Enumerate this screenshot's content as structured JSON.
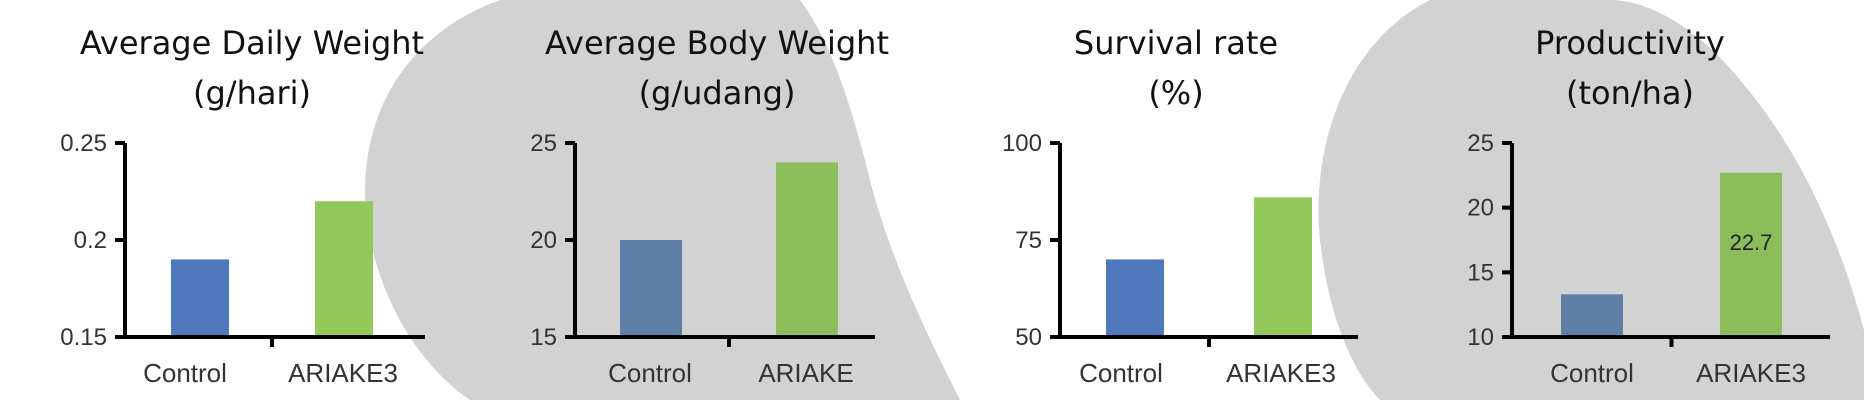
{
  "chart_data": [
    {
      "type": "bar",
      "title": "Average Daily Weight",
      "subtitle": "(g/hari)",
      "categories": [
        "Control",
        "ARIAKE3"
      ],
      "values": [
        0.19,
        0.22
      ],
      "colors": [
        "#4f78bd",
        "#92c95a"
      ],
      "ylim": [
        0.15,
        0.25
      ],
      "yticks": [
        "0.15",
        "0.2",
        "0.25"
      ],
      "ytick_values": [
        0.15,
        0.2,
        0.25
      ],
      "data_labels": [
        "",
        ""
      ],
      "grid": false
    },
    {
      "type": "bar",
      "title": "Average Body Weight",
      "subtitle": "(g/udang)",
      "categories": [
        "Control",
        "ARIAKE"
      ],
      "values": [
        20,
        24
      ],
      "colors": [
        "#5f7fa6",
        "#8cbd5b"
      ],
      "ylim": [
        15,
        25
      ],
      "yticks": [
        "15",
        "20",
        "25"
      ],
      "ytick_values": [
        15,
        20,
        25
      ],
      "data_labels": [
        "",
        ""
      ],
      "grid": false
    },
    {
      "type": "bar",
      "title": "Survival rate",
      "subtitle": "(%)",
      "categories": [
        "Control",
        "ARIAKE3"
      ],
      "values": [
        70,
        86
      ],
      "colors": [
        "#4f78bd",
        "#92c95a"
      ],
      "ylim": [
        50,
        100
      ],
      "yticks": [
        "50",
        "75",
        "100"
      ],
      "ytick_values": [
        50,
        75,
        100
      ],
      "data_labels": [
        "",
        ""
      ],
      "grid": false
    },
    {
      "type": "bar",
      "title": "Productivity",
      "subtitle": "(ton/ha)",
      "categories": [
        "Control",
        "ARIAKE3"
      ],
      "values": [
        13.3,
        22.7
      ],
      "colors": [
        "#5f7fa6",
        "#8cbd5b"
      ],
      "ylim": [
        10,
        25
      ],
      "yticks": [
        "10",
        "15",
        "20",
        "25"
      ],
      "ytick_values": [
        10,
        15,
        20,
        25
      ],
      "data_labels": [
        "",
        "22.7"
      ],
      "grid": false
    }
  ],
  "colors": {
    "background": "#ffffff",
    "watermark": "#d2d2d2",
    "axis": "#000000"
  }
}
